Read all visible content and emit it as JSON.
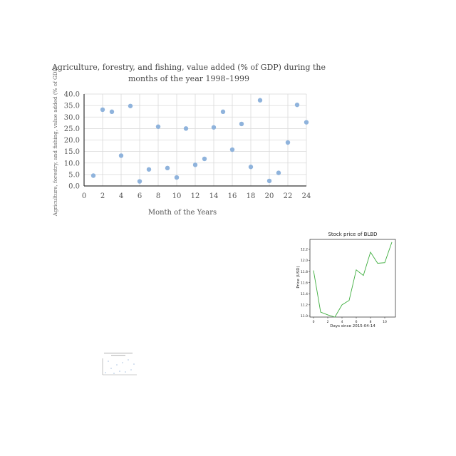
{
  "chart_data": [
    {
      "type": "scatter",
      "title": "Agriculture, forestry, and fishing, value added (% of GDP) during the months of the year 1998-1999",
      "title_lines": [
        "Agriculture, forestry, and fishing, value added (% of GDP) during the",
        "months of the year 1998–1999"
      ],
      "xlabel": "Month of the Years",
      "ylabel": "Agriculture, forestry, and fishing, value added (% of GDP)",
      "xlim": [
        0,
        24
      ],
      "ylim": [
        0,
        40
      ],
      "xticks": [
        "0",
        "2",
        "4",
        "6",
        "8",
        "10",
        "12",
        "14",
        "16",
        "18",
        "20",
        "22",
        "24"
      ],
      "yticks": [
        "0.0",
        "5.0",
        "10.0",
        "15.0",
        "20.0",
        "25.0",
        "30.0",
        "35.0",
        "40.0"
      ],
      "grid": true,
      "marker_color": "#8fb3dc",
      "x": [
        1,
        2,
        3,
        4,
        5,
        6,
        7,
        8,
        9,
        10,
        11,
        12,
        13,
        14,
        15,
        16,
        17,
        18,
        19,
        20,
        21,
        22,
        23,
        24
      ],
      "y": [
        4.5,
        33.2,
        32.3,
        13.2,
        34.8,
        2.0,
        7.2,
        25.8,
        7.8,
        3.7,
        25.0,
        9.2,
        11.8,
        25.5,
        32.3,
        15.8,
        27.0,
        8.3,
        37.3,
        2.2,
        5.7,
        18.9,
        35.3,
        27.7
      ]
    },
    {
      "type": "line",
      "title": "Stock price of BLBD",
      "xlabel": "Days since 2015-04-14",
      "ylabel": "Price (USD)",
      "xlim": [
        -0.5,
        11.5
      ],
      "ylim": [
        10.98,
        12.38
      ],
      "xticks": [
        "0",
        "2",
        "4",
        "6",
        "8",
        "10"
      ],
      "yticks": [
        "11.0",
        "11.2",
        "11.4",
        "11.6",
        "11.8",
        "12.0",
        "12.2"
      ],
      "line_color": "#3fae3f",
      "x": [
        0,
        1,
        2,
        3,
        4,
        5,
        6,
        7,
        8,
        9,
        10,
        11
      ],
      "y": [
        11.82,
        11.07,
        11.02,
        10.98,
        11.2,
        11.28,
        11.83,
        11.73,
        12.15,
        11.95,
        11.96,
        12.33
      ]
    }
  ]
}
